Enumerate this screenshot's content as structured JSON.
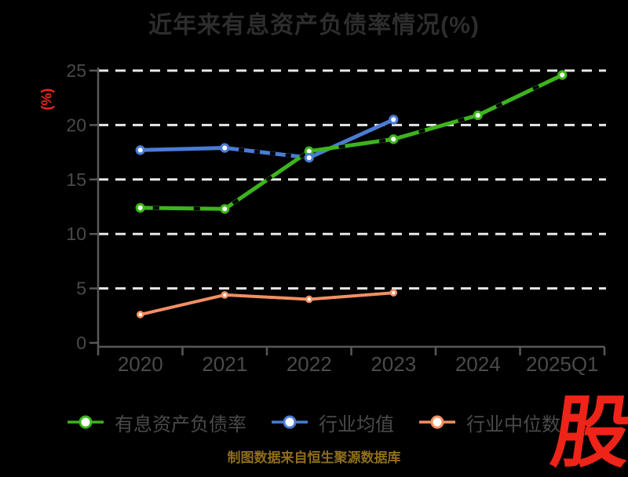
{
  "colors": {
    "background": "#000000",
    "title_gray": "#2d2d2d",
    "tick_gray": "#4a4a4a",
    "axis_gray": "#585858",
    "grid_white": "#e8e8e8",
    "accent_red": "#f0231a",
    "caption_gold": "#8f6e1c",
    "watermark_red": "#ee2418",
    "marker_fill": "#ffffff",
    "dash_overlay_black": "#000000"
  },
  "chart_data": {
    "type": "line",
    "title": "近年来有息资产负债率情况(%)",
    "ylabel": "(%)",
    "caption": "制图数据来自恒生聚源数据库",
    "watermark": "股",
    "categories": [
      "2020",
      "2021",
      "2022",
      "2023",
      "2024",
      "2025Q1"
    ],
    "y_ticks": [
      0,
      5,
      10,
      15,
      20,
      25
    ],
    "ylim": [
      0,
      25
    ],
    "grid": "horizontal-dashed-white",
    "legend_position": "bottom",
    "series": [
      {
        "name": "有息资产负债率",
        "color": "#3db41d",
        "line_width": 5,
        "marker": "circle-white-fill",
        "black_dash_overlay": "full",
        "values": [
          12.4,
          12.3,
          17.6,
          18.7,
          20.9,
          24.6
        ]
      },
      {
        "name": "行业均值",
        "color": "#4a7cd4",
        "line_width": 5,
        "marker": "circle-white-fill",
        "black_dash_overlay": "segment-2021-2022",
        "values": [
          17.7,
          17.9,
          17.0,
          20.5,
          null,
          null
        ]
      },
      {
        "name": "行业中位数",
        "color": "#f29062",
        "line_width": 4,
        "marker": "circle-white-fill",
        "black_dash_overlay": "none",
        "values": [
          2.6,
          4.4,
          4.0,
          4.6,
          null,
          null
        ]
      }
    ]
  }
}
